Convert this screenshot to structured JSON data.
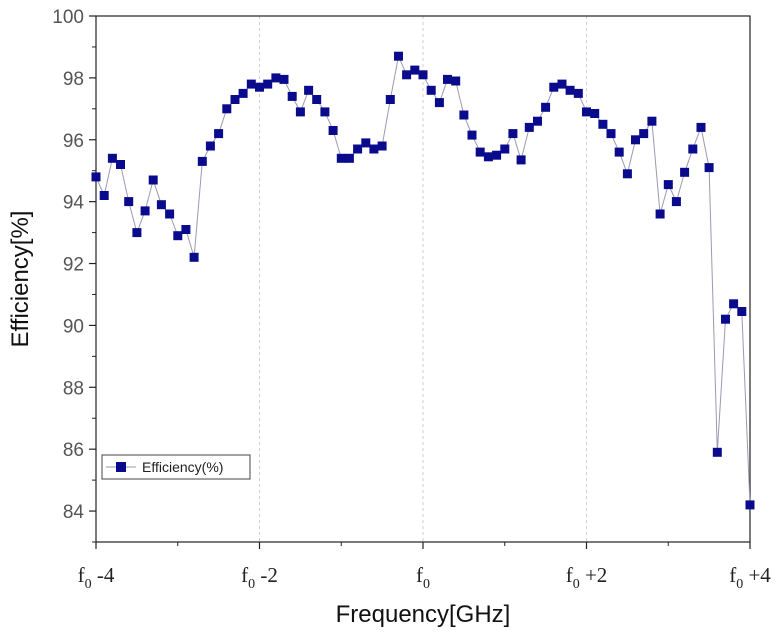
{
  "chart_data": {
    "type": "line",
    "xlabel": "Frequency[GHz]",
    "ylabel": "Efficiency[%]",
    "xlim": [
      -4,
      4
    ],
    "ylim": [
      83,
      100
    ],
    "yticks": [
      84,
      86,
      88,
      90,
      92,
      94,
      96,
      98,
      100
    ],
    "xticks": [
      {
        "value": -4,
        "base": "f",
        "sub": "0",
        "suffix": " -4"
      },
      {
        "value": -2,
        "base": "f",
        "sub": "0",
        "suffix": " -2"
      },
      {
        "value": 0,
        "base": "f",
        "sub": "0",
        "suffix": ""
      },
      {
        "value": 2,
        "base": "f",
        "sub": "0",
        "suffix": " +2"
      },
      {
        "value": 4,
        "base": "f",
        "sub": "0",
        "suffix": " +4"
      }
    ],
    "grid": "vertical dashed lines at f0-2, f0, f0+2",
    "legend_position": "lower-left",
    "colors": {
      "series": "#0a0a8c",
      "line": "#9a9ab0",
      "grid": "#cfcfcf"
    },
    "series": [
      {
        "name": "Efficiency(%)",
        "marker": "square",
        "x": [
          -4.0,
          -3.9,
          -3.8,
          -3.7,
          -3.6,
          -3.5,
          -3.4,
          -3.3,
          -3.2,
          -3.1,
          -3.0,
          -2.9,
          -2.8,
          -2.7,
          -2.6,
          -2.5,
          -2.4,
          -2.3,
          -2.2,
          -2.1,
          -2.0,
          -1.9,
          -1.8,
          -1.7,
          -1.6,
          -1.5,
          -1.4,
          -1.3,
          -1.2,
          -1.1,
          -1.0,
          -0.9,
          -0.8,
          -0.7,
          -0.6,
          -0.5,
          -0.4,
          -0.3,
          -0.2,
          -0.1,
          0.0,
          0.1,
          0.2,
          0.3,
          0.4,
          0.5,
          0.6,
          0.7,
          0.8,
          0.9,
          1.0,
          1.1,
          1.2,
          1.3,
          1.4,
          1.5,
          1.6,
          1.7,
          1.8,
          1.9,
          2.0,
          2.1,
          2.2,
          2.3,
          2.4,
          2.5,
          2.6,
          2.7,
          2.8,
          2.9,
          3.0,
          3.1,
          3.2,
          3.3,
          3.4,
          3.5,
          3.6,
          3.7,
          3.8,
          3.9,
          4.0
        ],
        "y": [
          94.8,
          94.2,
          95.4,
          95.2,
          94.0,
          93.0,
          93.7,
          94.7,
          93.9,
          93.6,
          92.9,
          93.1,
          92.2,
          95.3,
          95.8,
          96.2,
          97.0,
          97.3,
          97.5,
          97.8,
          97.7,
          97.8,
          98.0,
          97.95,
          97.4,
          96.9,
          97.6,
          97.3,
          96.9,
          96.3,
          95.4,
          95.4,
          95.7,
          95.9,
          95.7,
          95.8,
          97.3,
          98.7,
          98.1,
          98.25,
          98.1,
          97.6,
          97.2,
          97.95,
          97.9,
          96.8,
          96.15,
          95.6,
          95.45,
          95.5,
          95.7,
          96.2,
          95.35,
          96.4,
          96.6,
          97.05,
          97.7,
          97.8,
          97.6,
          97.5,
          96.9,
          96.85,
          96.5,
          96.2,
          95.6,
          94.9,
          96.0,
          96.2,
          96.6,
          93.6,
          94.55,
          94.0,
          94.95,
          95.7,
          96.4,
          95.1,
          85.9,
          90.2,
          90.7,
          90.45,
          84.2
        ]
      }
    ]
  }
}
